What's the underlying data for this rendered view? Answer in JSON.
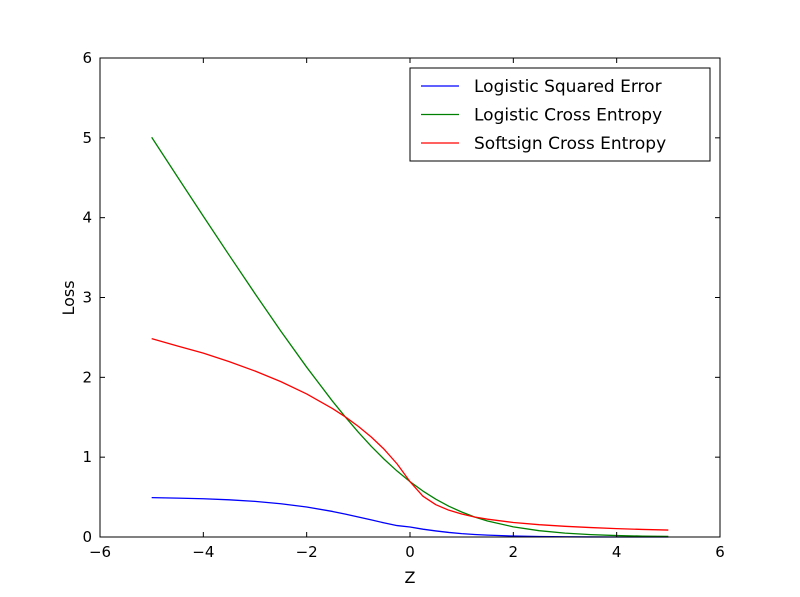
{
  "chart_data": {
    "type": "line",
    "xlabel": "Z",
    "ylabel": "Loss",
    "xlim": [
      -6,
      6
    ],
    "ylim": [
      0,
      6
    ],
    "xticks": [
      -6,
      -4,
      -2,
      0,
      2,
      4,
      6
    ],
    "xtick_labels": [
      "−6",
      "−4",
      "−2",
      "0",
      "2",
      "4",
      "6"
    ],
    "yticks": [
      0,
      1,
      2,
      3,
      4,
      5,
      6
    ],
    "ytick_labels": [
      "0",
      "1",
      "2",
      "3",
      "4",
      "5",
      "6"
    ],
    "grid": false,
    "legend_position": "top-right",
    "x": [
      -5,
      -4.5,
      -4,
      -3.5,
      -3,
      -2.5,
      -2,
      -1.5,
      -1.25,
      -1,
      -0.75,
      -0.5,
      -0.25,
      0,
      0.25,
      0.5,
      0.75,
      1,
      1.25,
      1.5,
      2,
      2.5,
      3,
      3.5,
      4,
      4.5,
      5
    ],
    "series": [
      {
        "name": "Logistic Squared Error",
        "color": "#0000ff",
        "values": [
          0.493,
          0.487,
          0.479,
          0.466,
          0.446,
          0.417,
          0.376,
          0.32,
          0.287,
          0.251,
          0.214,
          0.177,
          0.143,
          0.125,
          0.098,
          0.076,
          0.057,
          0.042,
          0.031,
          0.023,
          0.012,
          0.0055,
          0.0024,
          0.0009,
          0.0003,
          0.0001,
          5e-05
        ]
      },
      {
        "name": "Logistic Cross Entropy",
        "color": "#008000",
        "values": [
          5.007,
          4.511,
          4.018,
          3.53,
          3.049,
          2.579,
          2.127,
          1.701,
          1.502,
          1.313,
          1.136,
          0.974,
          0.826,
          0.693,
          0.576,
          0.474,
          0.386,
          0.313,
          0.251,
          0.201,
          0.127,
          0.079,
          0.049,
          0.03,
          0.018,
          0.011,
          0.007
        ]
      },
      {
        "name": "Softsign Cross Entropy",
        "color": "#ff0000",
        "values": [
          2.485,
          2.392,
          2.303,
          2.197,
          2.079,
          1.946,
          1.792,
          1.609,
          1.504,
          1.386,
          1.253,
          1.099,
          0.916,
          0.693,
          0.511,
          0.405,
          0.336,
          0.288,
          0.251,
          0.223,
          0.182,
          0.154,
          0.134,
          0.118,
          0.105,
          0.095,
          0.087
        ]
      }
    ]
  }
}
